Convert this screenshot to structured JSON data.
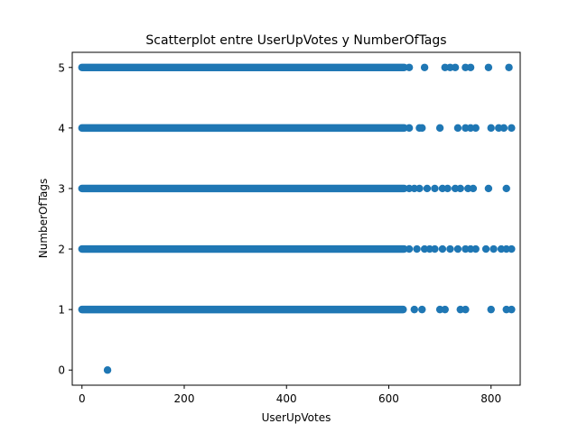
{
  "chart_data": {
    "type": "scatter",
    "title": "Scatterplot entre UserUpVotes y NumberOfTags",
    "xlabel": "UserUpVotes",
    "ylabel": "NumberOfTags",
    "xlim": [
      -19,
      857
    ],
    "ylim": [
      -0.25,
      5.25
    ],
    "xticks": [
      0,
      200,
      400,
      600,
      800
    ],
    "yticks": [
      0,
      1,
      2,
      3,
      4,
      5
    ],
    "grid": false,
    "marker_color": "#1f77b4",
    "dense_bands": [
      {
        "y": 5,
        "x_range": [
          0,
          630
        ]
      },
      {
        "y": 4,
        "x_range": [
          0,
          630
        ]
      },
      {
        "y": 3,
        "x_range": [
          0,
          630
        ]
      },
      {
        "y": 2,
        "x_range": [
          0,
          630
        ]
      },
      {
        "y": 1,
        "x_range": [
          0,
          628
        ]
      }
    ],
    "points": [
      {
        "x": 50,
        "y": 0
      },
      {
        "x": 640,
        "y": 5
      },
      {
        "x": 670,
        "y": 5
      },
      {
        "x": 710,
        "y": 5
      },
      {
        "x": 720,
        "y": 5
      },
      {
        "x": 730,
        "y": 5
      },
      {
        "x": 750,
        "y": 5
      },
      {
        "x": 760,
        "y": 5
      },
      {
        "x": 795,
        "y": 5
      },
      {
        "x": 835,
        "y": 5
      },
      {
        "x": 640,
        "y": 4
      },
      {
        "x": 660,
        "y": 4
      },
      {
        "x": 665,
        "y": 4
      },
      {
        "x": 700,
        "y": 4
      },
      {
        "x": 735,
        "y": 4
      },
      {
        "x": 750,
        "y": 4
      },
      {
        "x": 760,
        "y": 4
      },
      {
        "x": 770,
        "y": 4
      },
      {
        "x": 800,
        "y": 4
      },
      {
        "x": 815,
        "y": 4
      },
      {
        "x": 825,
        "y": 4
      },
      {
        "x": 840,
        "y": 4
      },
      {
        "x": 640,
        "y": 3
      },
      {
        "x": 650,
        "y": 3
      },
      {
        "x": 660,
        "y": 3
      },
      {
        "x": 675,
        "y": 3
      },
      {
        "x": 690,
        "y": 3
      },
      {
        "x": 705,
        "y": 3
      },
      {
        "x": 715,
        "y": 3
      },
      {
        "x": 730,
        "y": 3
      },
      {
        "x": 740,
        "y": 3
      },
      {
        "x": 755,
        "y": 3
      },
      {
        "x": 765,
        "y": 3
      },
      {
        "x": 795,
        "y": 3
      },
      {
        "x": 830,
        "y": 3
      },
      {
        "x": 640,
        "y": 2
      },
      {
        "x": 655,
        "y": 2
      },
      {
        "x": 670,
        "y": 2
      },
      {
        "x": 680,
        "y": 2
      },
      {
        "x": 690,
        "y": 2
      },
      {
        "x": 705,
        "y": 2
      },
      {
        "x": 720,
        "y": 2
      },
      {
        "x": 735,
        "y": 2
      },
      {
        "x": 750,
        "y": 2
      },
      {
        "x": 760,
        "y": 2
      },
      {
        "x": 770,
        "y": 2
      },
      {
        "x": 790,
        "y": 2
      },
      {
        "x": 805,
        "y": 2
      },
      {
        "x": 820,
        "y": 2
      },
      {
        "x": 830,
        "y": 2
      },
      {
        "x": 840,
        "y": 2
      },
      {
        "x": 650,
        "y": 1
      },
      {
        "x": 665,
        "y": 1
      },
      {
        "x": 700,
        "y": 1
      },
      {
        "x": 710,
        "y": 1
      },
      {
        "x": 740,
        "y": 1
      },
      {
        "x": 750,
        "y": 1
      },
      {
        "x": 800,
        "y": 1
      },
      {
        "x": 830,
        "y": 1
      },
      {
        "x": 840,
        "y": 1
      }
    ]
  }
}
